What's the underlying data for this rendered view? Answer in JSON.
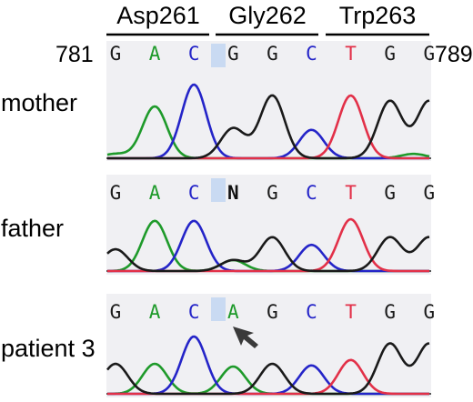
{
  "codons": [
    {
      "label": "Asp261"
    },
    {
      "label": "Gly262"
    },
    {
      "label": "Trp263"
    }
  ],
  "positions": {
    "start": "781",
    "end": "789"
  },
  "panels": [
    {
      "label": "mother",
      "bases": [
        "G",
        "A",
        "C",
        "G",
        "G",
        "C",
        "T",
        "G",
        "G"
      ],
      "highlight_index": 3,
      "peaks": [
        {
          "color": "green",
          "pos": 0.0,
          "h": 0.08
        },
        {
          "color": "green",
          "pos": 1.0,
          "h": 0.95
        },
        {
          "color": "blue",
          "pos": 2.0,
          "h": 1.35
        },
        {
          "color": "black",
          "pos": 3.0,
          "h": 0.55
        },
        {
          "color": "black",
          "pos": 4.0,
          "h": 1.15
        },
        {
          "color": "blue",
          "pos": 5.0,
          "h": 0.52
        },
        {
          "color": "red",
          "pos": 6.0,
          "h": 1.15
        },
        {
          "color": "black",
          "pos": 7.0,
          "h": 1.05
        },
        {
          "color": "black",
          "pos": 8.0,
          "h": 1.05
        },
        {
          "color": "green",
          "pos": 7.6,
          "h": 0.08
        }
      ]
    },
    {
      "label": "father",
      "bases": [
        "G",
        "A",
        "C",
        "N",
        "G",
        "C",
        "T",
        "G",
        "G"
      ],
      "highlight_index": 3,
      "peaks": [
        {
          "color": "black",
          "pos": 0.0,
          "h": 0.4
        },
        {
          "color": "green",
          "pos": 1.0,
          "h": 0.92
        },
        {
          "color": "blue",
          "pos": 2.0,
          "h": 0.92
        },
        {
          "color": "black",
          "pos": 3.0,
          "h": 0.2
        },
        {
          "color": "green",
          "pos": 3.0,
          "h": 0.2
        },
        {
          "color": "black",
          "pos": 4.0,
          "h": 0.62
        },
        {
          "color": "blue",
          "pos": 5.0,
          "h": 0.48
        },
        {
          "color": "red",
          "pos": 6.0,
          "h": 0.95
        },
        {
          "color": "black",
          "pos": 7.0,
          "h": 0.62
        },
        {
          "color": "black",
          "pos": 8.0,
          "h": 0.62
        }
      ]
    },
    {
      "label": "patient 3",
      "bases": [
        "G",
        "A",
        "C",
        "A",
        "G",
        "C",
        "T",
        "G",
        "G"
      ],
      "highlight_index": 3,
      "peaks": [
        {
          "color": "black",
          "pos": 0.0,
          "h": 0.55
        },
        {
          "color": "green",
          "pos": 1.0,
          "h": 0.55
        },
        {
          "color": "blue",
          "pos": 2.0,
          "h": 1.05
        },
        {
          "color": "green",
          "pos": 3.0,
          "h": 0.5
        },
        {
          "color": "black",
          "pos": 4.0,
          "h": 0.55
        },
        {
          "color": "blue",
          "pos": 5.0,
          "h": 0.52
        },
        {
          "color": "red",
          "pos": 6.0,
          "h": 0.62
        },
        {
          "color": "black",
          "pos": 7.0,
          "h": 0.92
        },
        {
          "color": "black",
          "pos": 8.0,
          "h": 0.92
        }
      ]
    }
  ],
  "colors": {
    "G": "#1a1a1a",
    "A": "#1e9a2a",
    "C": "#2424c8",
    "T": "#e23048",
    "N": "#111111",
    "panel_bg": "#f0f0f3",
    "highlight_bg": "#c9daf2",
    "arrow": "#3a3a3a"
  },
  "arrow": {
    "panel": 2,
    "base_index": 3,
    "icon": "arrow-pointer-icon"
  }
}
